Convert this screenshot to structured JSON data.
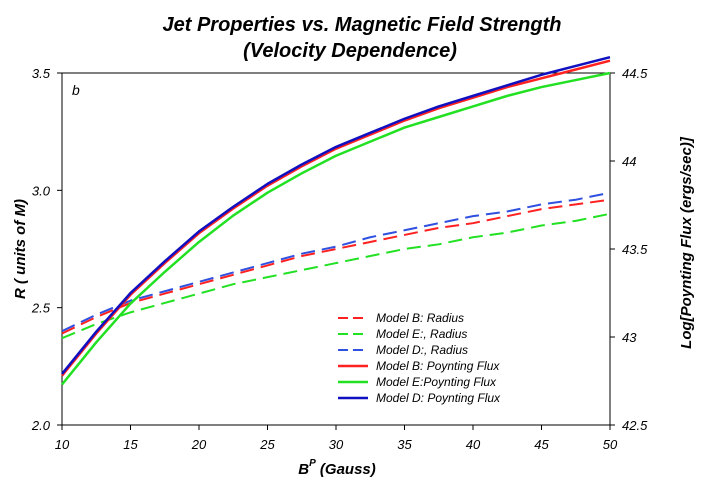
{
  "chart_data": {
    "type": "line",
    "title": "Jet Properties vs. Magnetic Field Strength",
    "subtitle": "(Velocity Dependence)",
    "panel_label": "b",
    "xlabel": "B",
    "xlabel_superscript": "P",
    "xlabel_suffix": " (Gauss)",
    "ylabel": "R ( units of M)",
    "y2label": "Log[Poynting Flux (ergs/sec)]",
    "xlim": [
      10,
      50
    ],
    "ylim": [
      2.0,
      3.5
    ],
    "y2lim": [
      42.5,
      44.5
    ],
    "xticks": [
      10,
      15,
      20,
      25,
      30,
      35,
      40,
      45,
      50
    ],
    "yticks": [
      "2.0",
      "2.5",
      "3.0",
      "3.5"
    ],
    "y2ticks": [
      "42.5",
      "43",
      "43.5",
      "44",
      "44.5"
    ],
    "x": [
      10,
      12.5,
      15,
      17.5,
      20,
      22.5,
      25,
      27.5,
      30,
      32.5,
      35,
      37.5,
      40,
      42.5,
      45,
      47.5,
      50
    ],
    "series": [
      {
        "name": "Model B: Radius",
        "axis": "left",
        "dash": true,
        "color": "#ff2020",
        "values": [
          2.39,
          2.46,
          2.52,
          2.56,
          2.6,
          2.64,
          2.68,
          2.72,
          2.75,
          2.78,
          2.81,
          2.84,
          2.86,
          2.89,
          2.92,
          2.94,
          2.96
        ]
      },
      {
        "name": "Model E:, Radius",
        "axis": "left",
        "dash": true,
        "color": "#22e022",
        "values": [
          2.37,
          2.43,
          2.48,
          2.52,
          2.56,
          2.6,
          2.63,
          2.66,
          2.69,
          2.72,
          2.75,
          2.77,
          2.8,
          2.82,
          2.85,
          2.87,
          2.9
        ]
      },
      {
        "name": "Model D:, Radius",
        "axis": "left",
        "dash": true,
        "color": "#3050e0",
        "values": [
          2.4,
          2.47,
          2.53,
          2.57,
          2.61,
          2.65,
          2.69,
          2.73,
          2.76,
          2.8,
          2.83,
          2.86,
          2.89,
          2.91,
          2.94,
          2.96,
          2.99
        ]
      },
      {
        "name": "Model B: Poynting Flux",
        "axis": "right",
        "dash": false,
        "color": "#ff2020",
        "values": [
          42.78,
          43.02,
          43.24,
          43.42,
          43.59,
          43.73,
          43.86,
          43.97,
          44.07,
          44.15,
          44.23,
          44.3,
          44.36,
          44.42,
          44.47,
          44.52,
          44.57
        ]
      },
      {
        "name": "Model E:Poynting Flux",
        "axis": "right",
        "dash": false,
        "color": "#22e022",
        "values": [
          42.73,
          42.97,
          43.19,
          43.37,
          43.54,
          43.69,
          43.82,
          43.93,
          44.03,
          44.11,
          44.19,
          44.25,
          44.31,
          44.37,
          44.42,
          44.46,
          44.5
        ]
      },
      {
        "name": "Model D: Poynting Flux",
        "axis": "right",
        "dash": false,
        "color": "#1010c0",
        "values": [
          42.79,
          43.03,
          43.25,
          43.43,
          43.6,
          43.74,
          43.87,
          43.98,
          44.08,
          44.16,
          44.24,
          44.31,
          44.37,
          44.43,
          44.49,
          44.54,
          44.59
        ]
      }
    ],
    "legend_position": "bottom-right",
    "grid": false
  }
}
